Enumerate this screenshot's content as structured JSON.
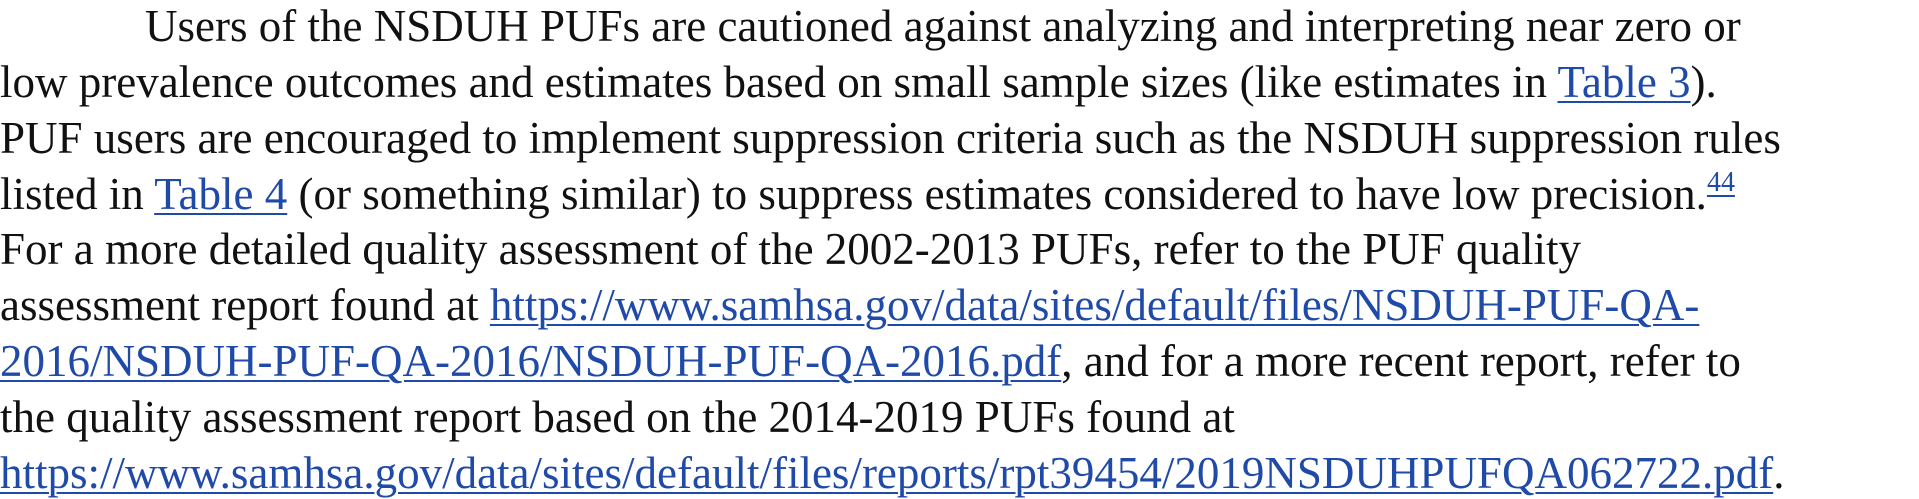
{
  "paragraph": {
    "line1": "Users of the NSDUH PUFs are cautioned against analyzing and interpreting near zero or",
    "line2_pre": "low prevalence outcomes and estimates based on small sample sizes (like estimates in ",
    "table3_link": "Table 3",
    "line2_post": ").",
    "line3": "PUF users are encouraged to implement suppression criteria such as the NSDUH suppression rules",
    "line4_pre": "listed in ",
    "table4_link": "Table 4",
    "line4_post": " (or something similar) to suppress estimates considered to have low precision.",
    "footnote_ref": "44",
    "line5": "For a more detailed quality assessment of the 2002-2013 PUFs, refer to the PUF quality",
    "line6_pre": "assessment report found at ",
    "url1_part1": "https://www.samhsa.gov/data/sites/default/files/NSDUH-PUF-QA-",
    "url1_part2": "2016/NSDUH-PUF-QA-2016/NSDUH-PUF-QA-2016.pdf",
    "line7_post": ", and for a more recent report, refer to",
    "line8": "the quality assessment report based on the 2014-2019 PUFs found at",
    "url2": "https://www.samhsa.gov/data/sites/default/files/reports/rpt39454/2019NSDUHPUFQA062722.pdf",
    "line9_post": "."
  },
  "colors": {
    "text": "#111111",
    "link": "#1f4aa8",
    "background": "#ffffff"
  }
}
